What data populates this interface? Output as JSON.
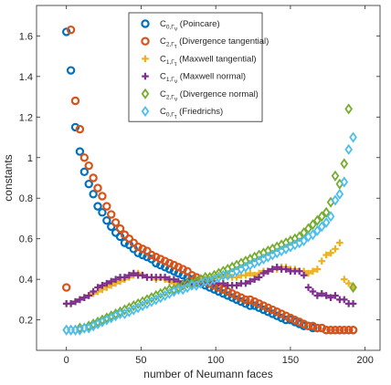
{
  "chart_data": {
    "type": "scatter",
    "xlabel": "number of Neumann faces",
    "ylabel": "constants",
    "xlim": [
      -20,
      210
    ],
    "ylim": [
      0.05,
      1.75
    ],
    "xticks": [
      0,
      50,
      100,
      150,
      200
    ],
    "yticks": [
      0.2,
      0.4,
      0.6,
      0.8,
      1,
      1.2,
      1.4,
      1.6
    ],
    "xtick_labels": [
      "0",
      "50",
      "100",
      "150",
      "200"
    ],
    "ytick_labels": [
      "0.2",
      "0.4",
      "0.6",
      "0.8",
      "1",
      "1.2",
      "1.4",
      "1.6"
    ],
    "grid": false,
    "legend_position": "top-center",
    "series": [
      {
        "legend": {
          "symbol": "C",
          "sub": "0,Γ",
          "subsub": "ν",
          "desc": " (Poincare)"
        },
        "marker": "circle",
        "color": "#0072BD",
        "x": [
          0,
          3,
          6,
          9,
          12,
          15,
          18,
          21,
          24,
          27,
          30,
          33,
          36,
          39,
          42,
          45,
          48,
          51,
          54,
          57,
          60,
          63,
          66,
          69,
          72,
          75,
          78,
          81,
          84,
          87,
          90,
          93,
          96,
          99,
          102,
          105,
          108,
          111,
          114,
          117,
          120,
          123,
          126,
          129,
          132,
          135,
          138,
          141,
          144,
          147,
          150,
          153,
          156,
          159,
          162,
          165,
          168,
          171,
          174,
          177,
          180,
          183,
          186,
          189,
          192
        ],
        "y": [
          1.62,
          1.43,
          1.15,
          1.03,
          0.93,
          0.87,
          0.82,
          0.76,
          0.73,
          0.69,
          0.66,
          0.63,
          0.61,
          0.58,
          0.57,
          0.55,
          0.53,
          0.52,
          0.51,
          0.5,
          0.48,
          0.47,
          0.46,
          0.45,
          0.44,
          0.43,
          0.42,
          0.41,
          0.4,
          0.39,
          0.38,
          0.37,
          0.36,
          0.35,
          0.34,
          0.33,
          0.32,
          0.31,
          0.3,
          0.29,
          0.28,
          0.27,
          0.27,
          0.26,
          0.25,
          0.24,
          0.23,
          0.22,
          0.21,
          0.2,
          0.2,
          0.19,
          0.18,
          0.17,
          0.17,
          0.16,
          0.16,
          0.16,
          0.15,
          0.15,
          0.15,
          0.15,
          0.15,
          0.15,
          0.15
        ]
      },
      {
        "legend": {
          "symbol": "C",
          "sub": "2,Γ",
          "subsub": "τ",
          "desc": " (Divergence tangential)"
        },
        "marker": "circle",
        "color": "#D95319",
        "x": [
          0,
          3,
          6,
          9,
          12,
          15,
          18,
          21,
          24,
          27,
          30,
          33,
          36,
          39,
          42,
          45,
          48,
          51,
          54,
          57,
          60,
          63,
          66,
          69,
          72,
          75,
          78,
          81,
          84,
          87,
          90,
          93,
          96,
          99,
          102,
          105,
          108,
          111,
          114,
          117,
          120,
          123,
          126,
          129,
          132,
          135,
          138,
          141,
          144,
          147,
          150,
          153,
          156,
          159,
          162,
          165,
          168,
          171,
          174,
          177,
          180,
          183,
          186,
          189,
          192
        ],
        "y": [
          0.36,
          1.63,
          1.28,
          1.14,
          1.0,
          0.96,
          0.9,
          0.85,
          0.81,
          0.76,
          0.72,
          0.68,
          0.65,
          0.62,
          0.6,
          0.58,
          0.56,
          0.55,
          0.54,
          0.52,
          0.51,
          0.5,
          0.49,
          0.48,
          0.47,
          0.46,
          0.45,
          0.44,
          0.42,
          0.41,
          0.4,
          0.39,
          0.38,
          0.37,
          0.36,
          0.35,
          0.34,
          0.33,
          0.32,
          0.31,
          0.3,
          0.3,
          0.29,
          0.28,
          0.27,
          0.26,
          0.25,
          0.24,
          0.23,
          0.22,
          0.21,
          0.2,
          0.19,
          0.18,
          0.17,
          0.17,
          0.16,
          0.16,
          0.15,
          0.15,
          0.15,
          0.15,
          0.15,
          0.15,
          0.15
        ]
      },
      {
        "legend": {
          "symbol": "C",
          "sub": "1,Γ",
          "subsub": "τ",
          "desc": " (Maxwell tangential)"
        },
        "marker": "plus",
        "color": "#EDB120",
        "x": [
          0,
          3,
          6,
          9,
          12,
          15,
          18,
          21,
          24,
          27,
          30,
          33,
          36,
          39,
          42,
          45,
          48,
          51,
          54,
          57,
          60,
          63,
          66,
          69,
          72,
          75,
          78,
          81,
          84,
          87,
          90,
          93,
          96,
          99,
          102,
          105,
          108,
          111,
          114,
          117,
          120,
          123,
          126,
          129,
          132,
          135,
          138,
          141,
          144,
          147,
          150,
          153,
          156,
          159,
          162,
          165,
          168,
          171,
          174,
          177,
          180,
          183,
          186,
          189,
          192
        ],
        "y": [
          0.28,
          0.28,
          0.29,
          0.3,
          0.31,
          0.32,
          0.33,
          0.34,
          0.35,
          0.36,
          0.37,
          0.38,
          0.39,
          0.4,
          0.41,
          0.42,
          0.43,
          0.42,
          0.41,
          0.41,
          0.4,
          0.41,
          0.4,
          0.39,
          0.38,
          0.37,
          0.37,
          0.38,
          0.37,
          0.38,
          0.39,
          0.4,
          0.4,
          0.41,
          0.42,
          0.41,
          0.42,
          0.41,
          0.41,
          0.42,
          0.42,
          0.43,
          0.42,
          0.43,
          0.44,
          0.44,
          0.45,
          0.45,
          0.46,
          0.46,
          0.45,
          0.45,
          0.44,
          0.44,
          0.43,
          0.44,
          0.45,
          0.49,
          0.52,
          0.53,
          0.55,
          0.58,
          0.4,
          0.38,
          0.36
        ]
      },
      {
        "legend": {
          "symbol": "C",
          "sub": "1,Γ",
          "subsub": "ν",
          "desc": " (Maxwell normal)"
        },
        "marker": "plus",
        "color": "#7E2F8E",
        "x": [
          0,
          3,
          6,
          9,
          12,
          15,
          18,
          21,
          24,
          27,
          30,
          33,
          36,
          39,
          42,
          45,
          48,
          51,
          54,
          57,
          60,
          63,
          66,
          69,
          72,
          75,
          78,
          81,
          84,
          87,
          90,
          93,
          96,
          99,
          102,
          105,
          108,
          111,
          114,
          117,
          120,
          123,
          126,
          129,
          132,
          135,
          138,
          141,
          144,
          147,
          150,
          153,
          156,
          159,
          162,
          165,
          168,
          171,
          174,
          177,
          180,
          183,
          186,
          189,
          192
        ],
        "y": [
          0.28,
          0.28,
          0.29,
          0.3,
          0.31,
          0.32,
          0.34,
          0.36,
          0.37,
          0.38,
          0.39,
          0.4,
          0.41,
          0.41,
          0.42,
          0.43,
          0.42,
          0.42,
          0.41,
          0.41,
          0.41,
          0.41,
          0.41,
          0.4,
          0.4,
          0.39,
          0.38,
          0.39,
          0.38,
          0.38,
          0.38,
          0.39,
          0.39,
          0.38,
          0.38,
          0.38,
          0.37,
          0.37,
          0.37,
          0.38,
          0.38,
          0.39,
          0.4,
          0.41,
          0.43,
          0.44,
          0.45,
          0.46,
          0.45,
          0.45,
          0.44,
          0.44,
          0.44,
          0.42,
          0.36,
          0.34,
          0.32,
          0.33,
          0.32,
          0.31,
          0.32,
          0.3,
          0.3,
          0.28,
          0.28
        ]
      },
      {
        "legend": {
          "symbol": "C",
          "sub": "2,Γ",
          "subsub": "ν",
          "desc": " (Divergence normal)"
        },
        "marker": "diamond",
        "color": "#77AC30",
        "x": [
          0,
          3,
          6,
          9,
          12,
          15,
          18,
          21,
          24,
          27,
          30,
          33,
          36,
          39,
          42,
          45,
          48,
          51,
          54,
          57,
          60,
          63,
          66,
          69,
          72,
          75,
          78,
          81,
          84,
          87,
          90,
          93,
          96,
          99,
          102,
          105,
          108,
          111,
          114,
          117,
          120,
          123,
          126,
          129,
          132,
          135,
          138,
          141,
          144,
          147,
          150,
          153,
          156,
          159,
          162,
          165,
          168,
          171,
          174,
          177,
          180,
          183,
          186,
          189,
          192
        ],
        "y": [
          0.15,
          0.15,
          0.15,
          0.16,
          0.16,
          0.17,
          0.18,
          0.19,
          0.2,
          0.21,
          0.22,
          0.23,
          0.24,
          0.25,
          0.26,
          0.27,
          0.28,
          0.29,
          0.3,
          0.31,
          0.32,
          0.33,
          0.34,
          0.35,
          0.35,
          0.36,
          0.37,
          0.38,
          0.38,
          0.39,
          0.4,
          0.41,
          0.41,
          0.42,
          0.43,
          0.44,
          0.45,
          0.46,
          0.47,
          0.48,
          0.49,
          0.5,
          0.51,
          0.52,
          0.53,
          0.54,
          0.55,
          0.56,
          0.57,
          0.58,
          0.59,
          0.6,
          0.61,
          0.63,
          0.65,
          0.67,
          0.69,
          0.71,
          0.73,
          0.78,
          0.91,
          0.87,
          0.97,
          1.24,
          0.36
        ]
      },
      {
        "legend": {
          "symbol": "C",
          "sub": "0,Γ",
          "subsub": "τ",
          "desc": " (Friedrichs)"
        },
        "marker": "diamond",
        "color": "#4DBEEE",
        "x": [
          0,
          3,
          6,
          9,
          12,
          15,
          18,
          21,
          24,
          27,
          30,
          33,
          36,
          39,
          42,
          45,
          48,
          51,
          54,
          57,
          60,
          63,
          66,
          69,
          72,
          75,
          78,
          81,
          84,
          87,
          90,
          93,
          96,
          99,
          102,
          105,
          108,
          111,
          114,
          117,
          120,
          123,
          126,
          129,
          132,
          135,
          138,
          141,
          144,
          147,
          150,
          153,
          156,
          159,
          162,
          165,
          168,
          171,
          174,
          177,
          180,
          183,
          186,
          189,
          192
        ],
        "y": [
          0.15,
          0.15,
          0.15,
          0.15,
          0.16,
          0.16,
          0.17,
          0.18,
          0.19,
          0.2,
          0.21,
          0.22,
          0.23,
          0.23,
          0.24,
          0.25,
          0.26,
          0.27,
          0.28,
          0.29,
          0.3,
          0.31,
          0.32,
          0.33,
          0.34,
          0.35,
          0.35,
          0.36,
          0.37,
          0.37,
          0.38,
          0.39,
          0.39,
          0.4,
          0.41,
          0.42,
          0.42,
          0.43,
          0.44,
          0.45,
          0.46,
          0.47,
          0.48,
          0.49,
          0.5,
          0.51,
          0.52,
          0.53,
          0.54,
          0.55,
          0.56,
          0.57,
          0.58,
          0.59,
          0.61,
          0.62,
          0.64,
          0.66,
          0.68,
          0.71,
          0.79,
          0.82,
          0.88,
          1.04,
          1.1
        ]
      }
    ]
  }
}
